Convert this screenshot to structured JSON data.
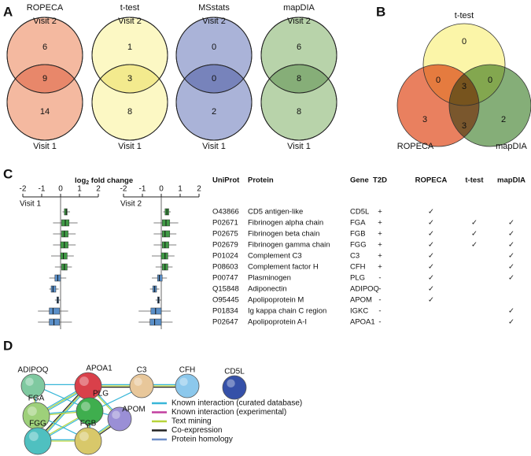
{
  "panel_labels": [
    "A",
    "B",
    "C",
    "D"
  ],
  "panel_a": [
    {
      "title": "ROPECA",
      "top_label": "Visit 2",
      "bottom_label": "Visit 1",
      "top": 6,
      "overlap": 9,
      "bottom": 14,
      "color": "#f4b9a0",
      "overlap_color": "#e8876a"
    },
    {
      "title": "t-test",
      "top_label": "Visit 2",
      "bottom_label": "Visit 1",
      "top": 1,
      "overlap": 3,
      "bottom": 8,
      "color": "#fcf8c4",
      "overlap_color": "#f3ea8e"
    },
    {
      "title": "MSstats",
      "top_label": "Visit 2",
      "bottom_label": "Visit 1",
      "top": 0,
      "overlap": 0,
      "bottom": 2,
      "color": "#aab3d8",
      "overlap_color": "#7783bb"
    },
    {
      "title": "mapDIA",
      "top_label": "Visit 2",
      "bottom_label": "Visit 1",
      "top": 6,
      "overlap": 8,
      "bottom": 8,
      "color": "#b8d3aa",
      "overlap_color": "#86ae78"
    }
  ],
  "panel_b": {
    "sets": [
      {
        "name": "t-test",
        "color": "#fbf5a8"
      },
      {
        "name": "ROPECA",
        "color": "#e9805f"
      },
      {
        "name": "mapDIA",
        "color": "#85ae78"
      }
    ],
    "t_test_only": 0,
    "ropeca_t_test": 0,
    "t_test_mapdia": 0,
    "all": 3,
    "ropeca_only": 3,
    "mapdia_only": 2,
    "ropeca_mapdia": 3
  },
  "panel_c": {
    "axis_title": [
      "log",
      "2",
      " fold change"
    ],
    "xlim": [
      -2,
      2
    ],
    "xticks": [
      -2,
      -1,
      0,
      1,
      2
    ],
    "colors": [
      "#3f9a45",
      "#3f9a45",
      "#3f9a45",
      "#3f9a45",
      "#3f9a45",
      "#3f9a45",
      "#5a8fc8",
      "#5a8fc8",
      "#5a8fc8",
      "#5a8fc8",
      "#5a8fc8"
    ],
    "plots": [
      {
        "label": "Visit 1",
        "boxes": [
          {
            "min": 0.1,
            "q1": 0.2,
            "median": 0.3,
            "q3": 0.35,
            "max": 0.5
          },
          {
            "min": -0.4,
            "q1": 0.05,
            "median": 0.25,
            "q3": 0.45,
            "max": 0.9
          },
          {
            "min": -0.4,
            "q1": 0.05,
            "median": 0.2,
            "q3": 0.4,
            "max": 0.8
          },
          {
            "min": -0.4,
            "q1": 0.0,
            "median": 0.2,
            "q3": 0.4,
            "max": 0.8
          },
          {
            "min": -0.5,
            "q1": 0.0,
            "median": 0.15,
            "q3": 0.35,
            "max": 0.7
          },
          {
            "min": -0.3,
            "q1": 0.05,
            "median": 0.2,
            "q3": 0.35,
            "max": 0.6
          },
          {
            "min": -0.6,
            "q1": -0.3,
            "median": -0.15,
            "q3": 0.0,
            "max": 0.3
          },
          {
            "min": -0.6,
            "q1": -0.5,
            "median": -0.4,
            "q3": -0.25,
            "max": -0.1
          },
          {
            "min": -0.3,
            "q1": -0.2,
            "median": -0.15,
            "q3": -0.1,
            "max": 0.0
          },
          {
            "min": -1.2,
            "q1": -0.6,
            "median": -0.4,
            "q3": -0.05,
            "max": 0.4
          },
          {
            "min": -1.2,
            "q1": -0.6,
            "median": -0.35,
            "q3": -0.05,
            "max": 0.6
          }
        ]
      },
      {
        "label": "Visit 2",
        "boxes": [
          {
            "min": 0.1,
            "q1": 0.2,
            "median": 0.3,
            "q3": 0.4,
            "max": 0.5
          },
          {
            "min": -0.4,
            "q1": 0.05,
            "median": 0.25,
            "q3": 0.45,
            "max": 0.9
          },
          {
            "min": -0.4,
            "q1": 0.05,
            "median": 0.2,
            "q3": 0.45,
            "max": 0.8
          },
          {
            "min": -0.4,
            "q1": 0.05,
            "median": 0.2,
            "q3": 0.4,
            "max": 0.8
          },
          {
            "min": -0.5,
            "q1": 0.0,
            "median": 0.2,
            "q3": 0.35,
            "max": 0.7
          },
          {
            "min": -0.3,
            "q1": 0.05,
            "median": 0.2,
            "q3": 0.35,
            "max": 0.6
          },
          {
            "min": -0.5,
            "q1": -0.2,
            "median": -0.1,
            "q3": 0.05,
            "max": 0.3
          },
          {
            "min": -0.6,
            "q1": -0.45,
            "median": -0.35,
            "q3": -0.25,
            "max": -0.1
          },
          {
            "min": -0.3,
            "q1": -0.2,
            "median": -0.15,
            "q3": -0.1,
            "max": 0.0
          },
          {
            "min": -1.2,
            "q1": -0.55,
            "median": -0.3,
            "q3": 0.0,
            "max": 0.5
          },
          {
            "min": -1.2,
            "q1": -0.6,
            "median": -0.35,
            "q3": 0.0,
            "max": 0.6
          }
        ]
      }
    ]
  },
  "table": {
    "columns": [
      "UniProt",
      "Protein",
      "Gene",
      "T2D",
      "ROPECA",
      "t-test",
      "mapDIA"
    ],
    "rows": [
      [
        "O43866",
        "CD5 antigen-like",
        "CD5L",
        "+",
        "✓",
        null,
        null
      ],
      [
        "P02671",
        "Fibrinogen alpha chain",
        "FGA",
        "+",
        "✓",
        "✓",
        "✓"
      ],
      [
        "P02675",
        "Fibrinogen beta chain",
        "FGB",
        "+",
        "✓",
        "✓",
        "✓"
      ],
      [
        "P02679",
        "Fibrinogen gamma chain",
        "FGG",
        "+",
        "✓",
        "✓",
        "✓"
      ],
      [
        "P01024",
        "Complement C3",
        "C3",
        "+",
        "✓",
        null,
        "✓"
      ],
      [
        "P08603",
        "Complement factor H",
        "CFH",
        "+",
        "✓",
        null,
        "✓"
      ],
      [
        "P00747",
        "Plasminogen",
        "PLG",
        "-",
        "✓",
        null,
        "✓"
      ],
      [
        "Q15848",
        "Adiponectin",
        "ADIPOQ",
        "-",
        "✓",
        null,
        null
      ],
      [
        "O95445",
        "Apolipoprotein M",
        "APOM",
        "-",
        "✓",
        null,
        null
      ],
      [
        "P01834",
        "Ig kappa chain C region",
        "IGKC",
        "-",
        null,
        null,
        "✓"
      ],
      [
        "P02647",
        "Apolipoprotein A-I",
        "APOA1",
        "-",
        null,
        null,
        "✓"
      ]
    ]
  },
  "network": {
    "nodes": [
      {
        "label": "ADIPOQ",
        "color": "#7fc9a0"
      },
      {
        "label": "APOA1",
        "color": "#d9404a"
      },
      {
        "label": "C3",
        "color": "#e8c79a"
      },
      {
        "label": "CFH",
        "color": "#8cc8ec"
      },
      {
        "label": "CD5L",
        "color": "#3550a8"
      },
      {
        "label": "FGA",
        "color": "#9ed07a"
      },
      {
        "label": "PLG",
        "color": "#3fae4e"
      },
      {
        "label": "APOM",
        "color": "#9a8fd6"
      },
      {
        "label": "FGG",
        "color": "#4fc0c0"
      },
      {
        "label": "FGB",
        "color": "#d8c86a"
      }
    ],
    "legend": [
      {
        "label": "Known interaction (curated database)",
        "color": "#38b6d8"
      },
      {
        "label": "Known interaction (experimental)",
        "color": "#c23f9f"
      },
      {
        "label": "Text mining",
        "color": "#b7d43a"
      },
      {
        "label": "Co-expression",
        "color": "#222222"
      },
      {
        "label": "Protein homology",
        "color": "#6e8ec8"
      }
    ]
  }
}
